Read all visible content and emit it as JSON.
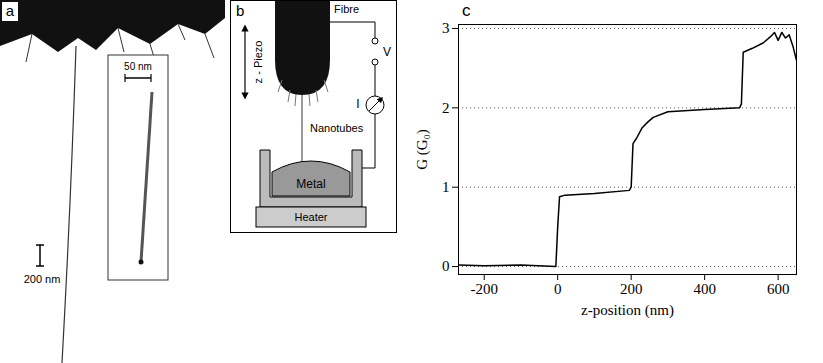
{
  "panel_a": {
    "label": "a",
    "scale_bar": "200 nm",
    "inset_scale_bar": "50 nm"
  },
  "panel_b": {
    "label": "b",
    "fibre": "Fibre",
    "piezo": "z - Piezo",
    "nanotubes": "Nanotubes",
    "voltage": "V",
    "current": "I",
    "metal": "Metal",
    "heater": "Heater"
  },
  "chart_data": {
    "label": "c",
    "type": "line",
    "x_label": "z-position (nm)",
    "y_label": "G (G₀)",
    "x": [
      -270,
      -200,
      -100,
      -5,
      0,
      5,
      20,
      100,
      195,
      200,
      205,
      215,
      230,
      245,
      260,
      300,
      400,
      495,
      500,
      505,
      530,
      560,
      580,
      590,
      600,
      610,
      620,
      630,
      640,
      650
    ],
    "values": [
      0.02,
      0.01,
      0.02,
      0.0,
      0.5,
      0.88,
      0.9,
      0.92,
      0.96,
      1.0,
      1.55,
      1.62,
      1.75,
      1.82,
      1.88,
      1.95,
      1.98,
      2.0,
      2.05,
      2.7,
      2.75,
      2.82,
      2.9,
      2.95,
      2.85,
      2.95,
      2.88,
      2.92,
      2.78,
      2.6
    ],
    "color": "#000000",
    "xlim": [
      -270,
      650
    ],
    "ylim": [
      -0.1,
      3.05
    ],
    "xticks": [
      -200,
      0,
      200,
      400,
      600
    ],
    "yticks": [
      0,
      1,
      2,
      3
    ],
    "grid": true
  }
}
